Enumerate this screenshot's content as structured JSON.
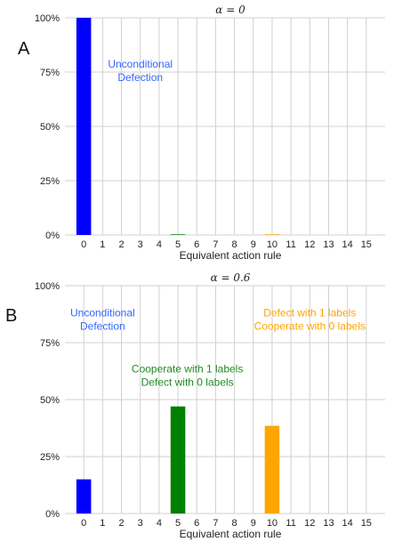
{
  "chart_data": [
    {
      "type": "bar",
      "panel_label": "A",
      "title": "α = 0",
      "xlabel": "Equivalent action rule",
      "ylabel": "",
      "categories": [
        "0",
        "1",
        "2",
        "3",
        "4",
        "5",
        "6",
        "7",
        "8",
        "9",
        "10",
        "11",
        "12",
        "13",
        "14",
        "15"
      ],
      "values": [
        100,
        0,
        0,
        0,
        0,
        0.3,
        0,
        0,
        0,
        0,
        0.3,
        0,
        0,
        0,
        0,
        0
      ],
      "bar_colors": [
        "#0000ff",
        "#0000ff",
        "#0000ff",
        "#0000ff",
        "#0000ff",
        "#008000",
        "#0000ff",
        "#0000ff",
        "#0000ff",
        "#0000ff",
        "#ffa500",
        "#0000ff",
        "#0000ff",
        "#0000ff",
        "#0000ff",
        "#0000ff"
      ],
      "ylim": [
        0,
        100
      ],
      "yticks": [
        "0%",
        "25%",
        "50%",
        "75%",
        "100%"
      ],
      "grid": true,
      "annotations": [
        {
          "lines": [
            "Unconditional",
            "Defection"
          ],
          "color": "#3366ff",
          "x": 3.0,
          "y": 77
        }
      ]
    },
    {
      "type": "bar",
      "panel_label": "B",
      "title": "α = 0.6",
      "xlabel": "Equivalent action rule",
      "ylabel": "",
      "categories": [
        "0",
        "1",
        "2",
        "3",
        "4",
        "5",
        "6",
        "7",
        "8",
        "9",
        "10",
        "11",
        "12",
        "13",
        "14",
        "15"
      ],
      "values": [
        15,
        0,
        0,
        0,
        0,
        47,
        0,
        0,
        0,
        0,
        38.5,
        0,
        0,
        0,
        0,
        0
      ],
      "bar_colors": [
        "#0000ff",
        "#0000ff",
        "#0000ff",
        "#0000ff",
        "#0000ff",
        "#008000",
        "#0000ff",
        "#0000ff",
        "#0000ff",
        "#0000ff",
        "#ffa500",
        "#0000ff",
        "#0000ff",
        "#0000ff",
        "#0000ff",
        "#0000ff"
      ],
      "ylim": [
        0,
        100
      ],
      "yticks": [
        "0%",
        "25%",
        "50%",
        "75%",
        "100%"
      ],
      "grid": true,
      "annotations": [
        {
          "lines": [
            "Unconditional",
            "Defection"
          ],
          "color": "#3366ff",
          "x": 1.0,
          "y": 86.5
        },
        {
          "lines": [
            "Cooperate with 1 labels",
            "Defect with 0 labels"
          ],
          "color": "#228b22",
          "x": 5.5,
          "y": 62
        },
        {
          "lines": [
            "Defect with 1 labels",
            "Cooperate with 0 labels"
          ],
          "color": "#ffa500",
          "x": 12.0,
          "y": 86.5
        }
      ]
    }
  ]
}
